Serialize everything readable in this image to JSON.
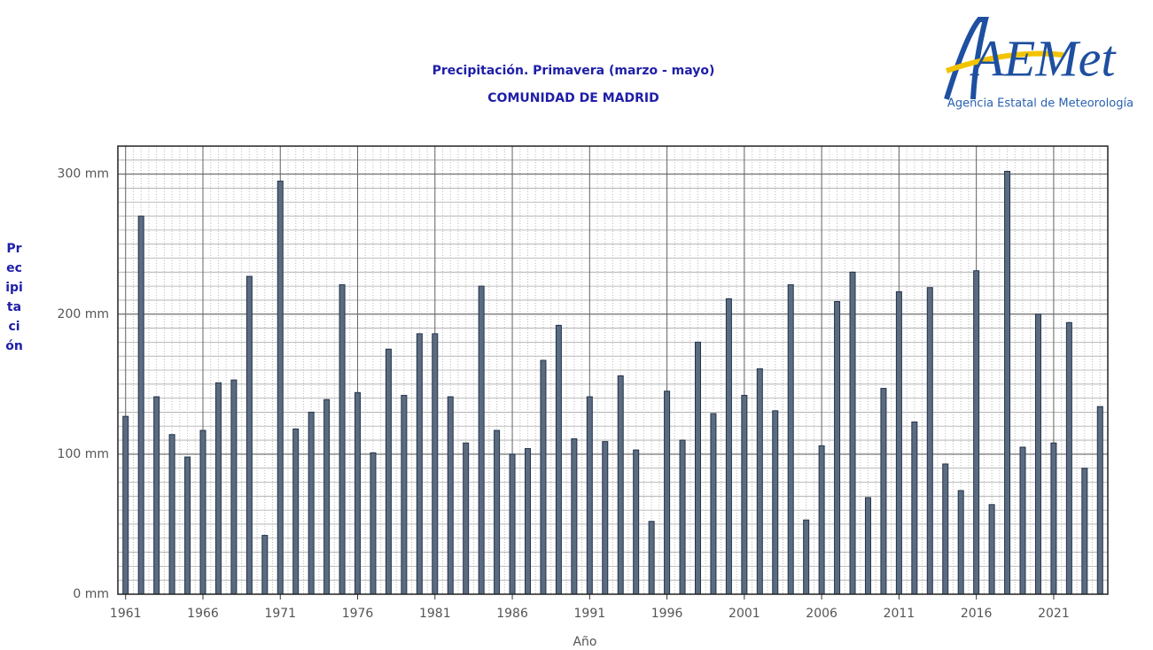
{
  "chart_data": {
    "type": "bar",
    "title": "Precipitación. Primavera (marzo - mayo)",
    "subtitle": "COMUNIDAD DE MADRID",
    "x_label": "Año",
    "y_label": "Precipitación",
    "categories": [
      "1961",
      null,
      null,
      null,
      null,
      "1966",
      null,
      null,
      null,
      null,
      "1971",
      null,
      null,
      null,
      null,
      "1976",
      null,
      null,
      null,
      null,
      "1981",
      null,
      null,
      null,
      null,
      "1986",
      null,
      null,
      null,
      null,
      "1991",
      null,
      null,
      null,
      null,
      "1996",
      null,
      null,
      null,
      null,
      "2001",
      null,
      null,
      null,
      null,
      "2006",
      null,
      null,
      null,
      null,
      "2011",
      null,
      null,
      null,
      null,
      "2016",
      null,
      null,
      null,
      null,
      "2021",
      null,
      null,
      null
    ],
    "values": [
      127,
      270,
      141,
      114,
      98,
      117,
      151,
      153,
      227,
      42,
      295,
      118,
      130,
      139,
      221,
      144,
      101,
      175,
      142,
      186,
      186,
      141,
      108,
      220,
      117,
      100,
      104,
      167,
      192,
      111,
      141,
      109,
      156,
      103,
      52,
      145,
      110,
      180,
      129,
      211,
      142,
      161,
      131,
      221,
      53,
      106,
      209,
      230,
      69,
      147,
      216,
      123,
      219,
      93,
      74,
      231,
      64,
      302,
      105,
      200,
      108,
      194,
      90,
      134
    ],
    "color": "#5b6b80",
    "ylim": [
      0,
      320
    ],
    "yticks": [
      {
        "value": 0,
        "label": "0 mm"
      },
      {
        "value": 100,
        "label": "100 mm"
      },
      {
        "value": 200,
        "label": "200 mm"
      },
      {
        "value": 300,
        "label": "300 mm"
      }
    ],
    "grid": true
  },
  "logo": {
    "name": "AEMet",
    "caption": "Agencia Estatal de Meteorología"
  }
}
